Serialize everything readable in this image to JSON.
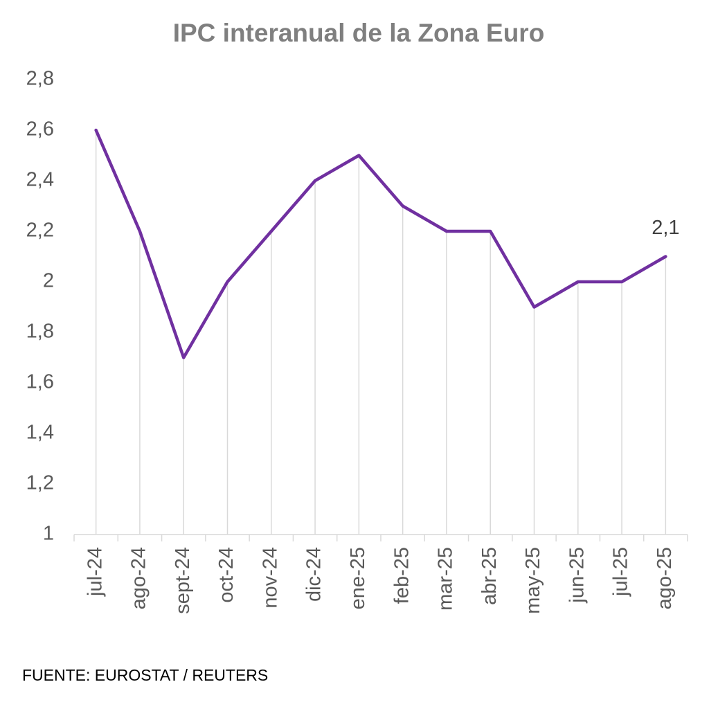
{
  "chart_data": {
    "type": "line",
    "title": "IPC interanual de la Zona Euro",
    "categories": [
      "jul-24",
      "ago-24",
      "sept-24",
      "oct-24",
      "nov-24",
      "dic-24",
      "ene-25",
      "feb-25",
      "mar-25",
      "abr-25",
      "may-25",
      "jun-25",
      "jul-25",
      "ago-25"
    ],
    "values": [
      2.6,
      2.2,
      1.7,
      2.0,
      2.2,
      2.4,
      2.5,
      2.3,
      2.2,
      2.2,
      1.9,
      2.0,
      2.0,
      2.1
    ],
    "value_labels": [
      null,
      null,
      null,
      null,
      null,
      null,
      null,
      null,
      null,
      null,
      null,
      null,
      null,
      "2,1"
    ],
    "color": "#7030a0",
    "ylim": [
      1,
      2.8
    ],
    "yticks": [
      1,
      {
        "value": 1.2,
        "label": "1,2"
      },
      {
        "value": 1.4,
        "label": "1,4"
      },
      {
        "value": 1.6,
        "label": "1,6"
      },
      {
        "value": 1.8,
        "label": "1,8"
      },
      2,
      {
        "value": 2.2,
        "label": "2,2"
      },
      {
        "value": 2.4,
        "label": "2,4"
      },
      {
        "value": 2.6,
        "label": "2,6"
      },
      {
        "value": 2.8,
        "label": "2,8"
      }
    ],
    "drop_lines": true,
    "source": "FUENTE: EUROSTAT / REUTERS"
  }
}
